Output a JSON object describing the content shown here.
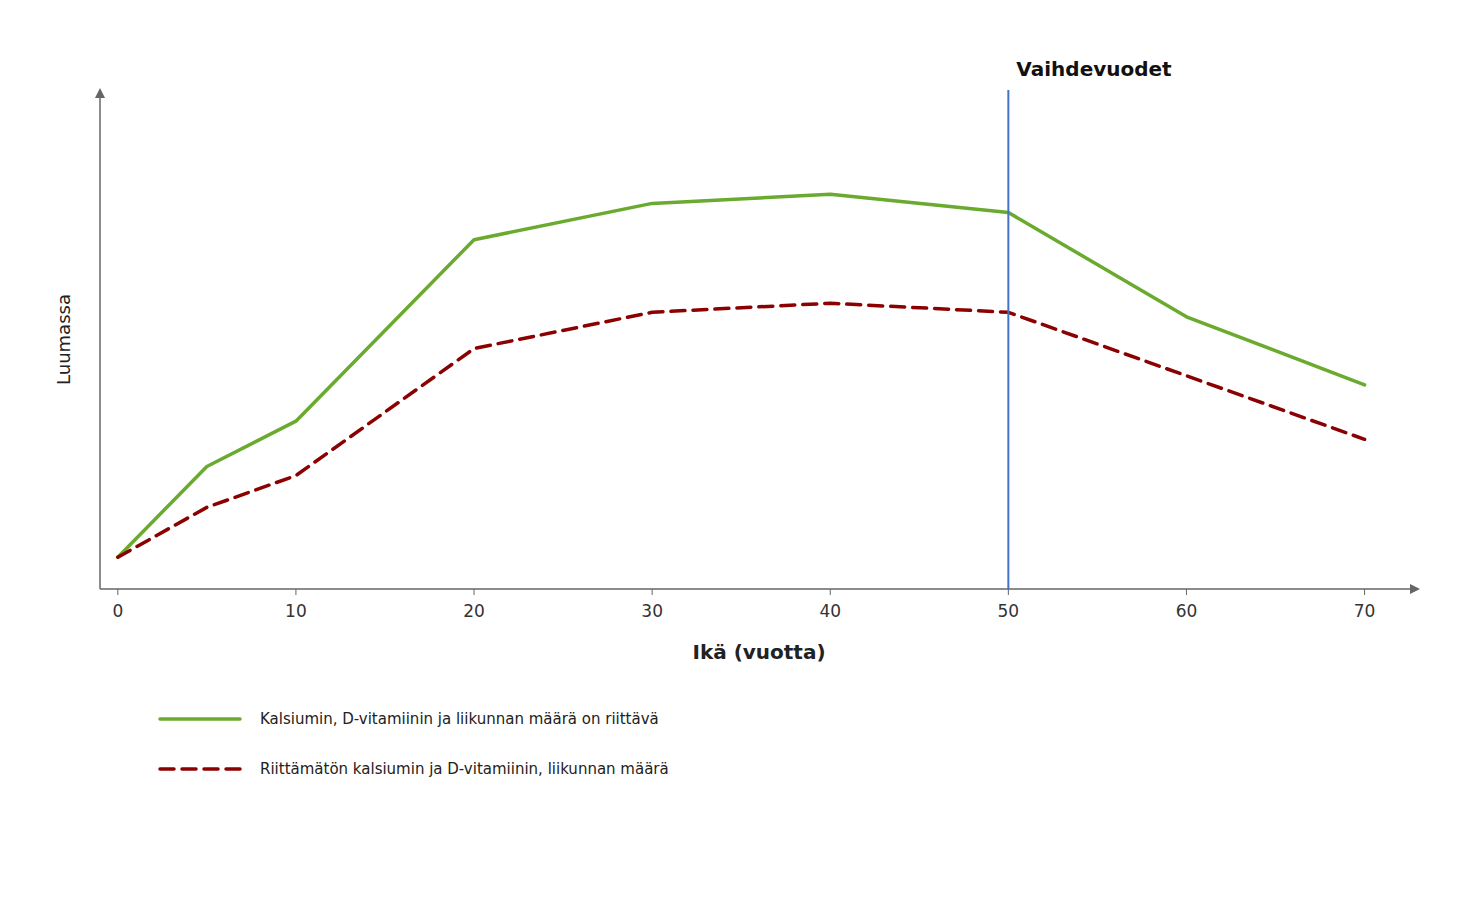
{
  "chart_data": {
    "type": "line",
    "xlabel": "Ikä (vuotta)",
    "ylabel": "Luumassa",
    "x": [
      0,
      5,
      10,
      20,
      30,
      40,
      50,
      60,
      70
    ],
    "series": [
      {
        "name": "Kalsiumin, D-vitamiinin ja liikunnan määrä on riittävä",
        "color": "#6aaa2e",
        "line_style": "solid",
        "values": [
          0.02,
          0.22,
          0.32,
          0.72,
          0.8,
          0.82,
          0.78,
          0.55,
          0.4
        ]
      },
      {
        "name": "Riittämätön kalsiumin ja D-vitamiinin, liikunnan määrä",
        "color": "#8b0000",
        "line_style": "dashed",
        "values": [
          0.02,
          0.13,
          0.2,
          0.48,
          0.56,
          0.58,
          0.56,
          0.42,
          0.28
        ]
      }
    ],
    "annotations": [
      {
        "type": "vline",
        "x": 50,
        "text": "Vaihdevuodet",
        "color": "#4472c4"
      }
    ],
    "xlim": [
      -1,
      73
    ],
    "xticks": [
      0,
      10,
      20,
      30,
      40,
      50,
      60,
      70
    ],
    "ylim": [
      -0.05,
      1.05
    ],
    "tick_labels": "x",
    "grid": false,
    "legend": "bottom"
  }
}
